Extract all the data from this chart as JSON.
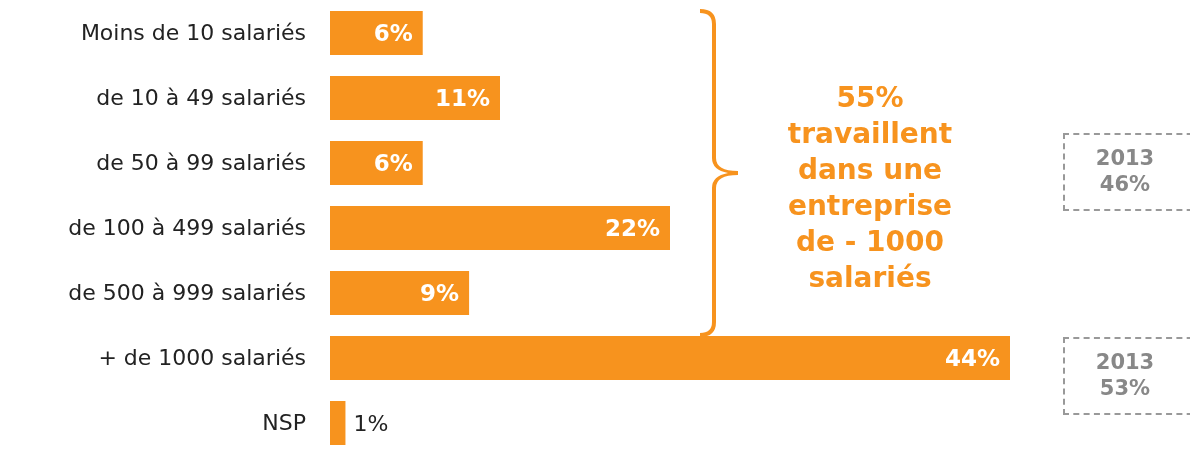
{
  "chart_data": {
    "type": "bar",
    "orientation": "horizontal",
    "categories": [
      "Moins de 10 salariés",
      "de 10 à 49 salariés",
      "de 50 à 99 salariés",
      "de 100 à 499 salariés",
      "de 500 à 999 salariés",
      "+ de 1000 salariés",
      "NSP"
    ],
    "values": [
      6,
      11,
      6,
      22,
      9,
      44,
      1
    ],
    "value_labels": [
      "6%",
      "11%",
      "6%",
      "22%",
      "9%",
      "44%",
      "1%"
    ],
    "color": "#f7931e",
    "annotations": [
      "55% travaillent dans une entreprise de - 1000 salariés",
      "2013 46%",
      "2013 53%"
    ]
  }
}
